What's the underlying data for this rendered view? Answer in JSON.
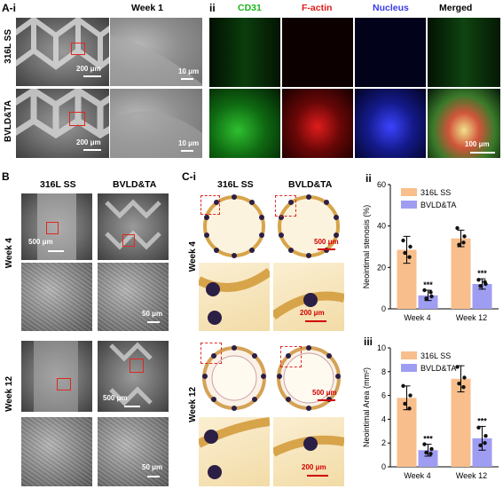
{
  "panels": {
    "A_i": {
      "letter": "A-i",
      "title": "Week 1",
      "rows": [
        "316L SS",
        "BVLD&TA"
      ],
      "scales": [
        "200 μm",
        "10 μm",
        "200 μm",
        "10 μm"
      ]
    },
    "A_ii": {
      "letter": "ii",
      "columns": [
        "CD31",
        "F-actin",
        "Nucleus",
        "Merged"
      ],
      "scale": "100 μm",
      "column_colors": [
        "#1db31d",
        "#e01a1a",
        "#3a3ae8",
        "#000000"
      ]
    },
    "B": {
      "letter": "B",
      "columns": [
        "316L SS",
        "BVLD&TA"
      ],
      "rows": [
        "Week 4",
        "Week 12"
      ],
      "scales": [
        "500 μm",
        "50 μm",
        "500 μm",
        "50 μm"
      ]
    },
    "C_i": {
      "letter": "C-i",
      "columns": [
        "316L SS",
        "BVLD&TA"
      ],
      "rows": [
        "Week 4",
        "Week 12"
      ],
      "scales": [
        "500 μm",
        "200 μm",
        "500 μm",
        "200 μm"
      ]
    },
    "C_ii": {
      "letter": "ii"
    },
    "C_iii": {
      "letter": "iii"
    }
  },
  "chart_data": [
    {
      "type": "bar",
      "categories": [
        "Week 4",
        "Week 12"
      ],
      "series": [
        {
          "name": "316L SS",
          "values": [
            28.5,
            34
          ],
          "errors": [
            6.5,
            4
          ],
          "color": "#f8be8c",
          "points": [
            [
              33,
              30,
              27,
              25
            ],
            [
              39,
              35,
              31,
              32
            ]
          ]
        },
        {
          "name": "BVLD&TA",
          "values": [
            6.5,
            12
          ],
          "errors": [
            2.5,
            2.5
          ],
          "color": "#9f9df2",
          "points": [
            [
              9,
              6,
              5,
              8
            ],
            [
              14,
              12,
              11,
              13
            ]
          ]
        }
      ],
      "ylabel": "Neointimal stenosis (%)",
      "ylim": [
        0,
        60
      ],
      "yticks": [
        0,
        20,
        40,
        60
      ],
      "significance": [
        "***",
        "***"
      ],
      "legend": "top-left"
    },
    {
      "type": "bar",
      "categories": [
        "Week 4",
        "Week 12"
      ],
      "series": [
        {
          "name": "316L SS",
          "values": [
            5.8,
            7.4
          ],
          "errors": [
            1.0,
            1.1
          ],
          "color": "#f8be8c",
          "points": [
            [
              6.8,
              6.0,
              5.3,
              4.9
            ],
            [
              8.4,
              7.5,
              7.0,
              6.7
            ]
          ]
        },
        {
          "name": "BVLD&TA",
          "values": [
            1.4,
            2.4
          ],
          "errors": [
            0.5,
            1.0
          ],
          "color": "#9f9df2",
          "points": [
            [
              1.9,
              1.5,
              1.2,
              1.1
            ],
            [
              3.3,
              2.6,
              1.8,
              2.0
            ]
          ]
        }
      ],
      "ylabel": "Neointimal Area (mm²)",
      "ylim": [
        0,
        10
      ],
      "yticks": [
        0,
        2,
        4,
        6,
        8,
        10
      ],
      "significance": [
        "***",
        "***"
      ],
      "legend": "top-left"
    }
  ]
}
